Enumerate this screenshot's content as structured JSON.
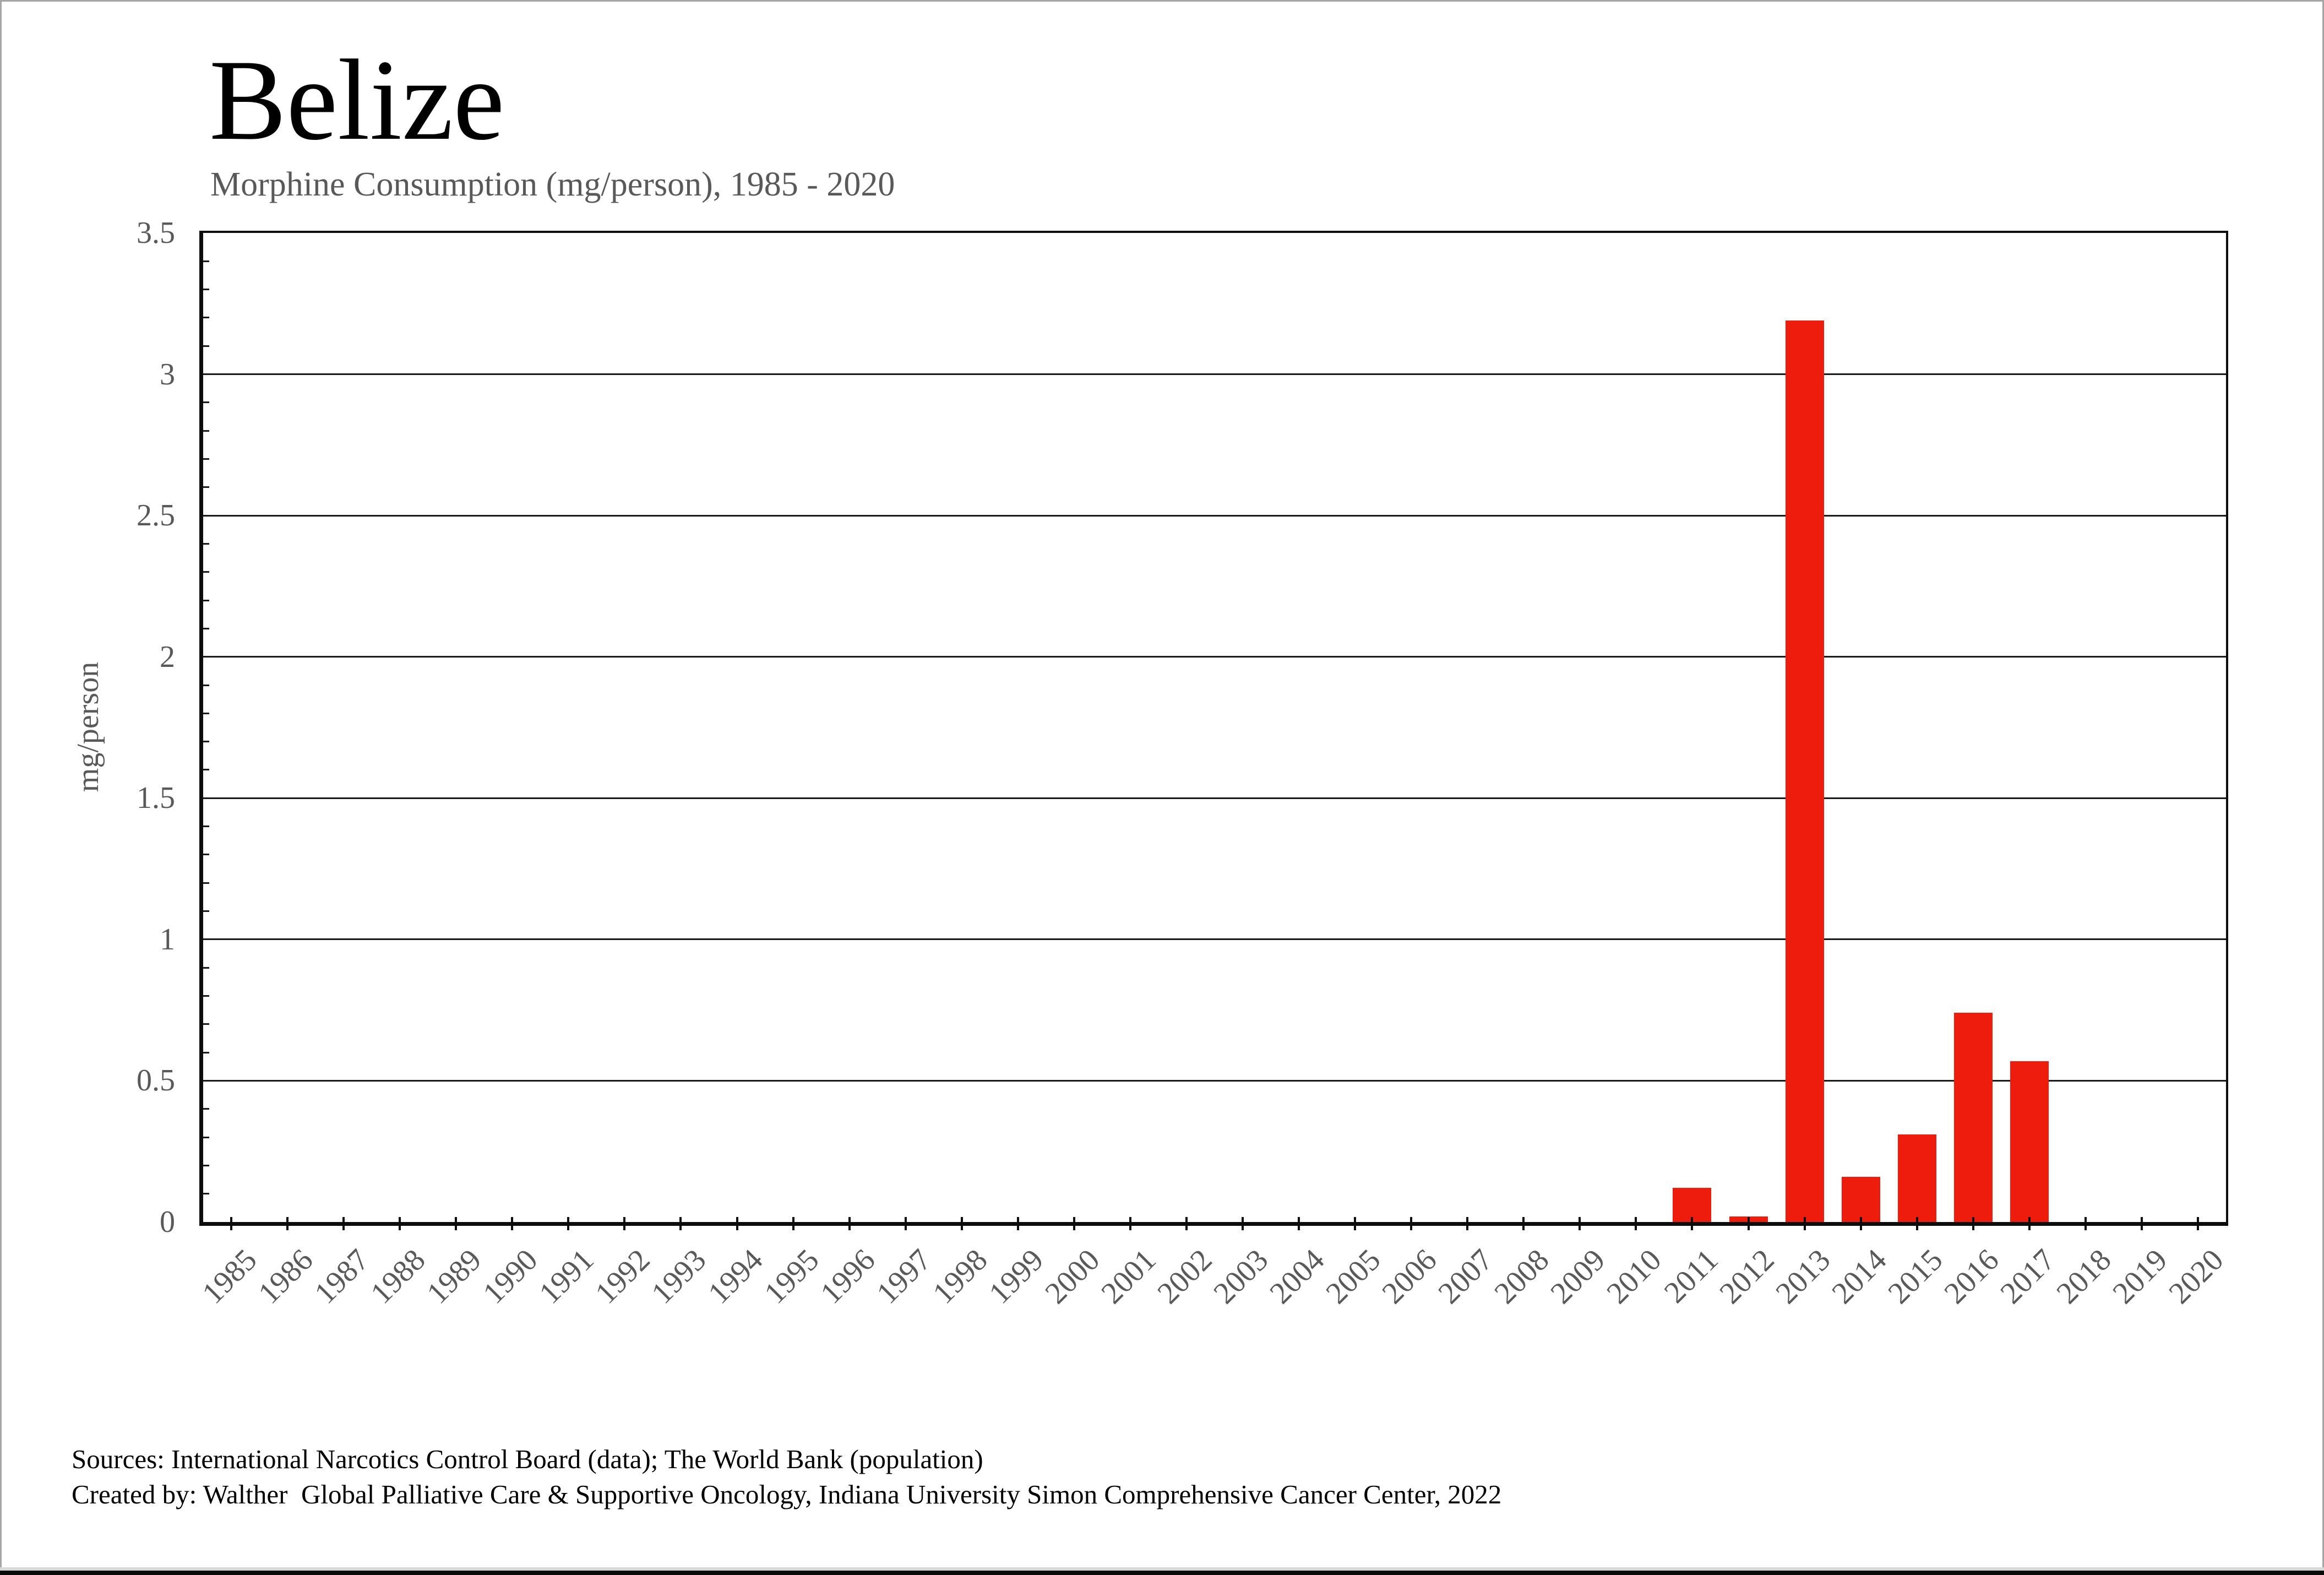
{
  "page": {
    "title": "Belize",
    "subtitle": "Morphine Consumption (mg/person), 1985 - 2020",
    "footer": {
      "line1": "Sources: International Narcotics Control Board (data); The World Bank (population)",
      "line2": "Created by: Walther  Global Palliative Care & Supportive Oncology, Indiana University Simon Comprehensive Cancer Center, 2022"
    }
  },
  "chart_data": {
    "type": "bar",
    "title": "Belize",
    "subtitle": "Morphine Consumption (mg/person), 1985 - 2020",
    "xlabel": "",
    "ylabel": "mg/person",
    "ylim": [
      0,
      3.5
    ],
    "ytick_labels": [
      "0",
      "0.5",
      "1",
      "1.5",
      "2",
      "2.5",
      "3",
      "3.5"
    ],
    "ytick_values": [
      0,
      0.5,
      1,
      1.5,
      2,
      2.5,
      3,
      3.5
    ],
    "minor_tick_step": 0.1,
    "grid": true,
    "legend": false,
    "bar_color": "#ee1c0c",
    "categories": [
      "1985",
      "1986",
      "1987",
      "1988",
      "1989",
      "1990",
      "1991",
      "1992",
      "1993",
      "1994",
      "1995",
      "1996",
      "1997",
      "1998",
      "1999",
      "2000",
      "2001",
      "2002",
      "2003",
      "2004",
      "2005",
      "2006",
      "2007",
      "2008",
      "2009",
      "2010",
      "2011",
      "2012",
      "2013",
      "2014",
      "2015",
      "2016",
      "2017",
      "2018",
      "2019",
      "2020"
    ],
    "values": [
      0,
      0,
      0,
      0,
      0,
      0,
      0,
      0,
      0,
      0,
      0,
      0,
      0,
      0,
      0,
      0,
      0,
      0,
      0,
      0,
      0,
      0,
      0,
      0,
      0,
      0,
      0.12,
      0.02,
      3.19,
      0.16,
      0.31,
      0.74,
      0.57,
      0,
      0,
      0
    ]
  }
}
